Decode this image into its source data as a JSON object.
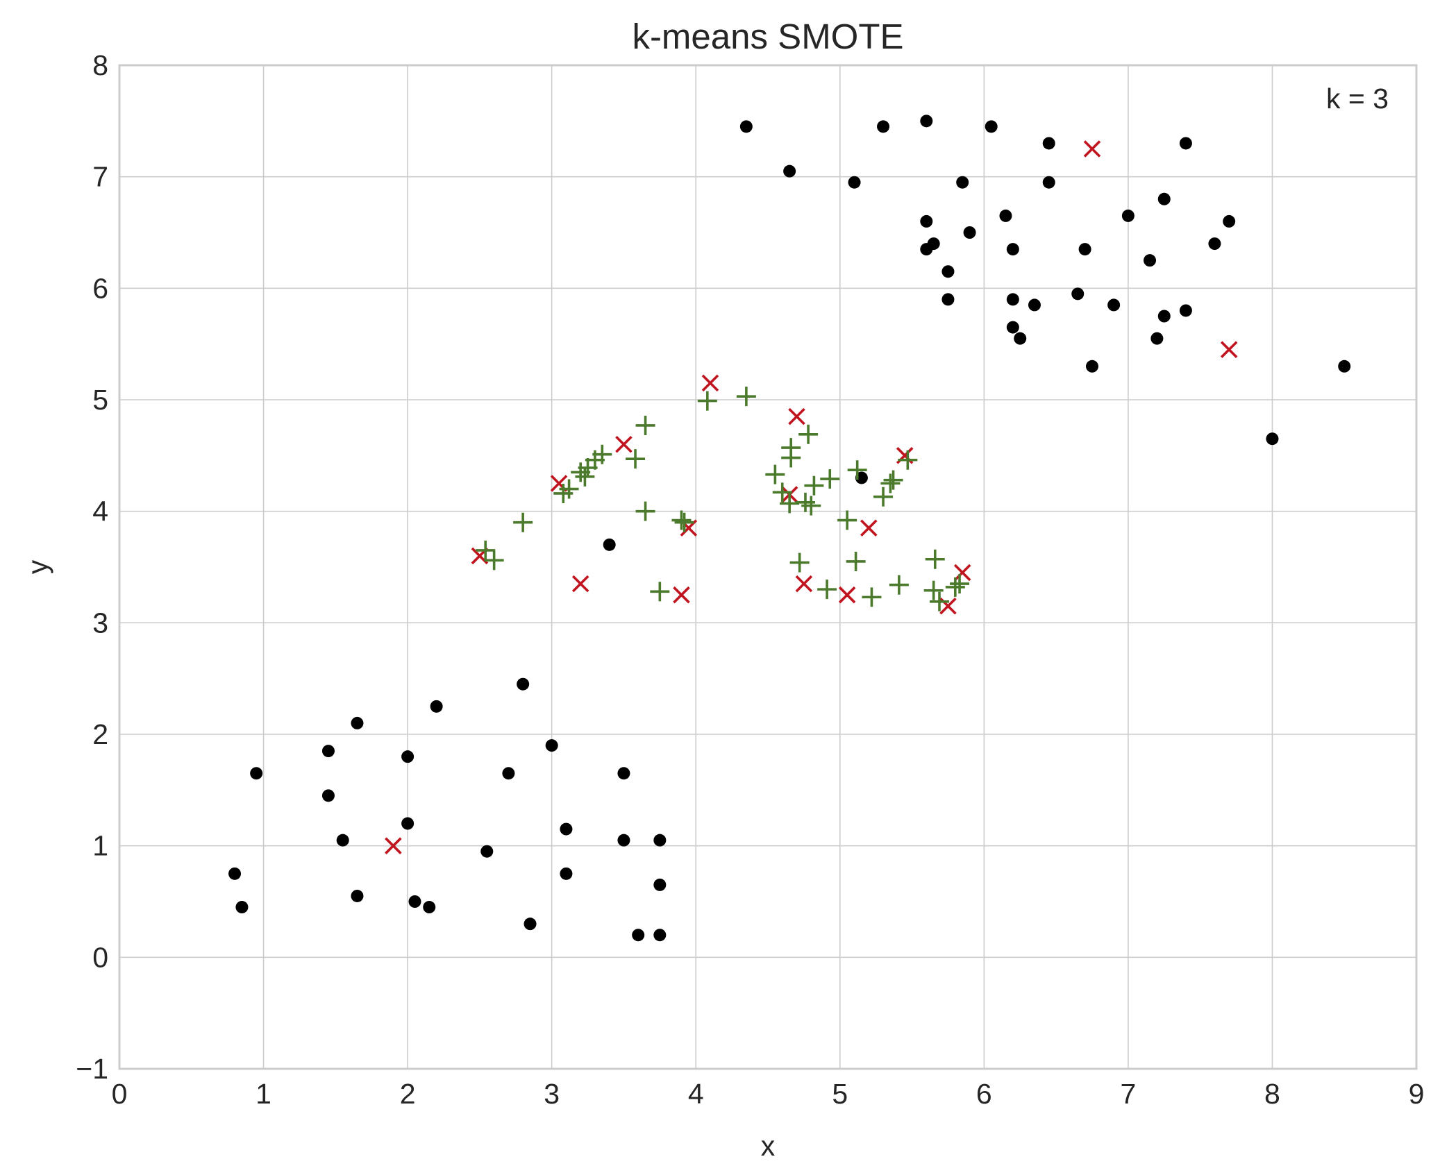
{
  "chart_data": {
    "type": "scatter",
    "title": "k-means SMOTE",
    "xlabel": "x",
    "ylabel": "y",
    "xlim": [
      0,
      9
    ],
    "ylim": [
      -1,
      8
    ],
    "xticks": [
      "0",
      "1",
      "2",
      "3",
      "4",
      "5",
      "6",
      "7",
      "8",
      "9"
    ],
    "yticks": [
      "−1",
      "0",
      "1",
      "2",
      "3",
      "4",
      "5",
      "6",
      "7",
      "8"
    ],
    "grid": true,
    "annotation": "k = 3",
    "series": [
      {
        "marker": "circle",
        "color": "#000000",
        "points": [
          [
            4.35,
            7.45
          ],
          [
            4.65,
            7.05
          ],
          [
            5.1,
            6.95
          ],
          [
            5.3,
            7.45
          ],
          [
            5.6,
            7.5
          ],
          [
            6.05,
            7.45
          ],
          [
            6.45,
            7.3
          ],
          [
            7.4,
            7.3
          ],
          [
            5.85,
            6.95
          ],
          [
            6.45,
            6.95
          ],
          [
            7.25,
            6.8
          ],
          [
            7.0,
            6.65
          ],
          [
            7.7,
            6.6
          ],
          [
            6.15,
            6.65
          ],
          [
            5.6,
            6.6
          ],
          [
            5.9,
            6.5
          ],
          [
            5.65,
            6.4
          ],
          [
            5.6,
            6.35
          ],
          [
            6.2,
            6.35
          ],
          [
            6.7,
            6.35
          ],
          [
            7.6,
            6.4
          ],
          [
            7.15,
            6.25
          ],
          [
            5.75,
            6.15
          ],
          [
            5.75,
            5.9
          ],
          [
            6.2,
            5.9
          ],
          [
            6.35,
            5.85
          ],
          [
            6.65,
            5.95
          ],
          [
            6.9,
            5.85
          ],
          [
            7.4,
            5.8
          ],
          [
            7.25,
            5.75
          ],
          [
            6.2,
            5.65
          ],
          [
            6.25,
            5.55
          ],
          [
            7.2,
            5.55
          ],
          [
            6.75,
            5.3
          ],
          [
            8.5,
            5.3
          ],
          [
            8.0,
            4.65
          ],
          [
            5.15,
            4.3
          ],
          [
            3.4,
            3.7
          ],
          [
            2.8,
            2.45
          ],
          [
            2.2,
            2.25
          ],
          [
            1.65,
            2.1
          ],
          [
            3.0,
            1.9
          ],
          [
            1.45,
            1.85
          ],
          [
            2.0,
            1.8
          ],
          [
            0.95,
            1.65
          ],
          [
            2.7,
            1.65
          ],
          [
            3.5,
            1.65
          ],
          [
            1.45,
            1.45
          ],
          [
            2.0,
            1.2
          ],
          [
            3.1,
            1.15
          ],
          [
            1.55,
            1.05
          ],
          [
            3.5,
            1.05
          ],
          [
            3.75,
            1.05
          ],
          [
            2.55,
            0.95
          ],
          [
            0.8,
            0.75
          ],
          [
            3.1,
            0.75
          ],
          [
            3.75,
            0.65
          ],
          [
            1.65,
            0.55
          ],
          [
            2.05,
            0.5
          ],
          [
            0.85,
            0.45
          ],
          [
            2.15,
            0.45
          ],
          [
            2.85,
            0.3
          ],
          [
            3.6,
            0.2
          ],
          [
            3.75,
            0.2
          ]
        ]
      },
      {
        "marker": "x",
        "color": "#c0141e",
        "points": [
          [
            6.75,
            7.25
          ],
          [
            7.7,
            5.45
          ],
          [
            4.1,
            5.15
          ],
          [
            4.7,
            4.85
          ],
          [
            3.5,
            4.6
          ],
          [
            5.45,
            4.5
          ],
          [
            3.05,
            4.25
          ],
          [
            4.65,
            4.15
          ],
          [
            3.95,
            3.85
          ],
          [
            5.2,
            3.85
          ],
          [
            2.5,
            3.6
          ],
          [
            5.85,
            3.45
          ],
          [
            3.2,
            3.35
          ],
          [
            4.75,
            3.35
          ],
          [
            3.9,
            3.25
          ],
          [
            5.05,
            3.25
          ],
          [
            5.75,
            3.15
          ],
          [
            1.9,
            1.0
          ]
        ]
      },
      {
        "marker": "plus",
        "color": "#4c7a2c",
        "points": [
          [
            4.35,
            5.03
          ],
          [
            4.08,
            4.99
          ],
          [
            3.65,
            4.77
          ],
          [
            4.78,
            4.69
          ],
          [
            4.66,
            4.57
          ],
          [
            3.35,
            4.51
          ],
          [
            3.3,
            4.46
          ],
          [
            3.58,
            4.47
          ],
          [
            4.66,
            4.48
          ],
          [
            5.47,
            4.46
          ],
          [
            3.25,
            4.39
          ],
          [
            3.2,
            4.35
          ],
          [
            5.12,
            4.37
          ],
          [
            4.55,
            4.33
          ],
          [
            3.23,
            4.31
          ],
          [
            4.93,
            4.29
          ],
          [
            5.37,
            4.28
          ],
          [
            5.35,
            4.25
          ],
          [
            4.82,
            4.23
          ],
          [
            3.12,
            4.2
          ],
          [
            3.08,
            4.16
          ],
          [
            4.6,
            4.17
          ],
          [
            5.3,
            4.13
          ],
          [
            4.65,
            4.07
          ],
          [
            4.76,
            4.08
          ],
          [
            4.8,
            4.05
          ],
          [
            3.65,
            4.0
          ],
          [
            5.05,
            3.92
          ],
          [
            2.8,
            3.9
          ],
          [
            3.9,
            3.92
          ],
          [
            3.92,
            3.9
          ],
          [
            2.54,
            3.65
          ],
          [
            2.6,
            3.56
          ],
          [
            4.72,
            3.54
          ],
          [
            5.11,
            3.55
          ],
          [
            5.66,
            3.57
          ],
          [
            5.41,
            3.34
          ],
          [
            5.83,
            3.35
          ],
          [
            5.8,
            3.32
          ],
          [
            4.91,
            3.3
          ],
          [
            3.75,
            3.28
          ],
          [
            5.65,
            3.29
          ],
          [
            5.22,
            3.23
          ],
          [
            5.69,
            3.19
          ]
        ]
      }
    ]
  }
}
